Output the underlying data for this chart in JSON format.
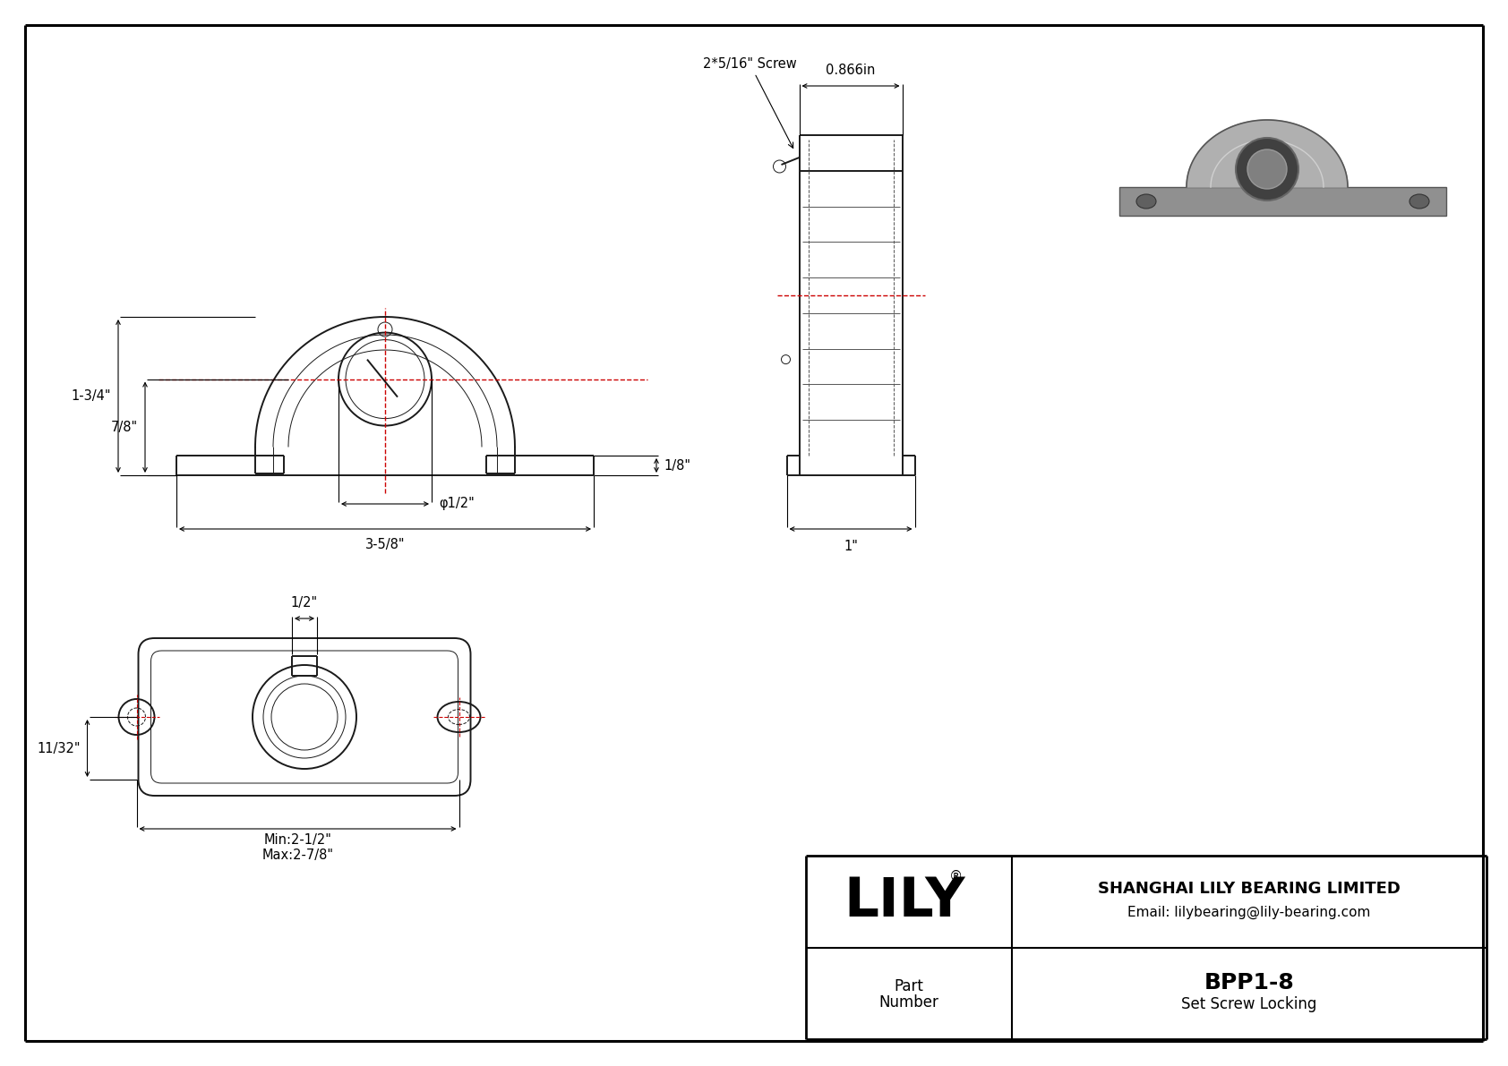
{
  "bg_color": "#ffffff",
  "line_color": "#1a1a1a",
  "dim_color": "#000000",
  "red_color": "#cc0000",
  "gray_line": "#555555",
  "title_block": {
    "company": "SHANGHAI LILY BEARING LIMITED",
    "email": "Email: lilybearing@lily-bearing.com",
    "part_label": "Part\nNumber",
    "part_number": "BPP1-8",
    "part_type": "Set Screw Locking",
    "logo": "LILY"
  },
  "dims_front": {
    "height_total": "1-3/4\"",
    "height_base": "7/8\"",
    "width_total": "3-5/8\"",
    "bore": "φ1/2\"",
    "flange": "1/8\""
  },
  "dims_side": {
    "width": "0.866in",
    "screw": "2*5/16\" Screw",
    "depth": "1\""
  },
  "dims_bottom": {
    "half_width": "1/2\"",
    "offset": "11/32\"",
    "min_span": "Min:2-1/2\"",
    "max_span": "Max:2-7/8\""
  }
}
